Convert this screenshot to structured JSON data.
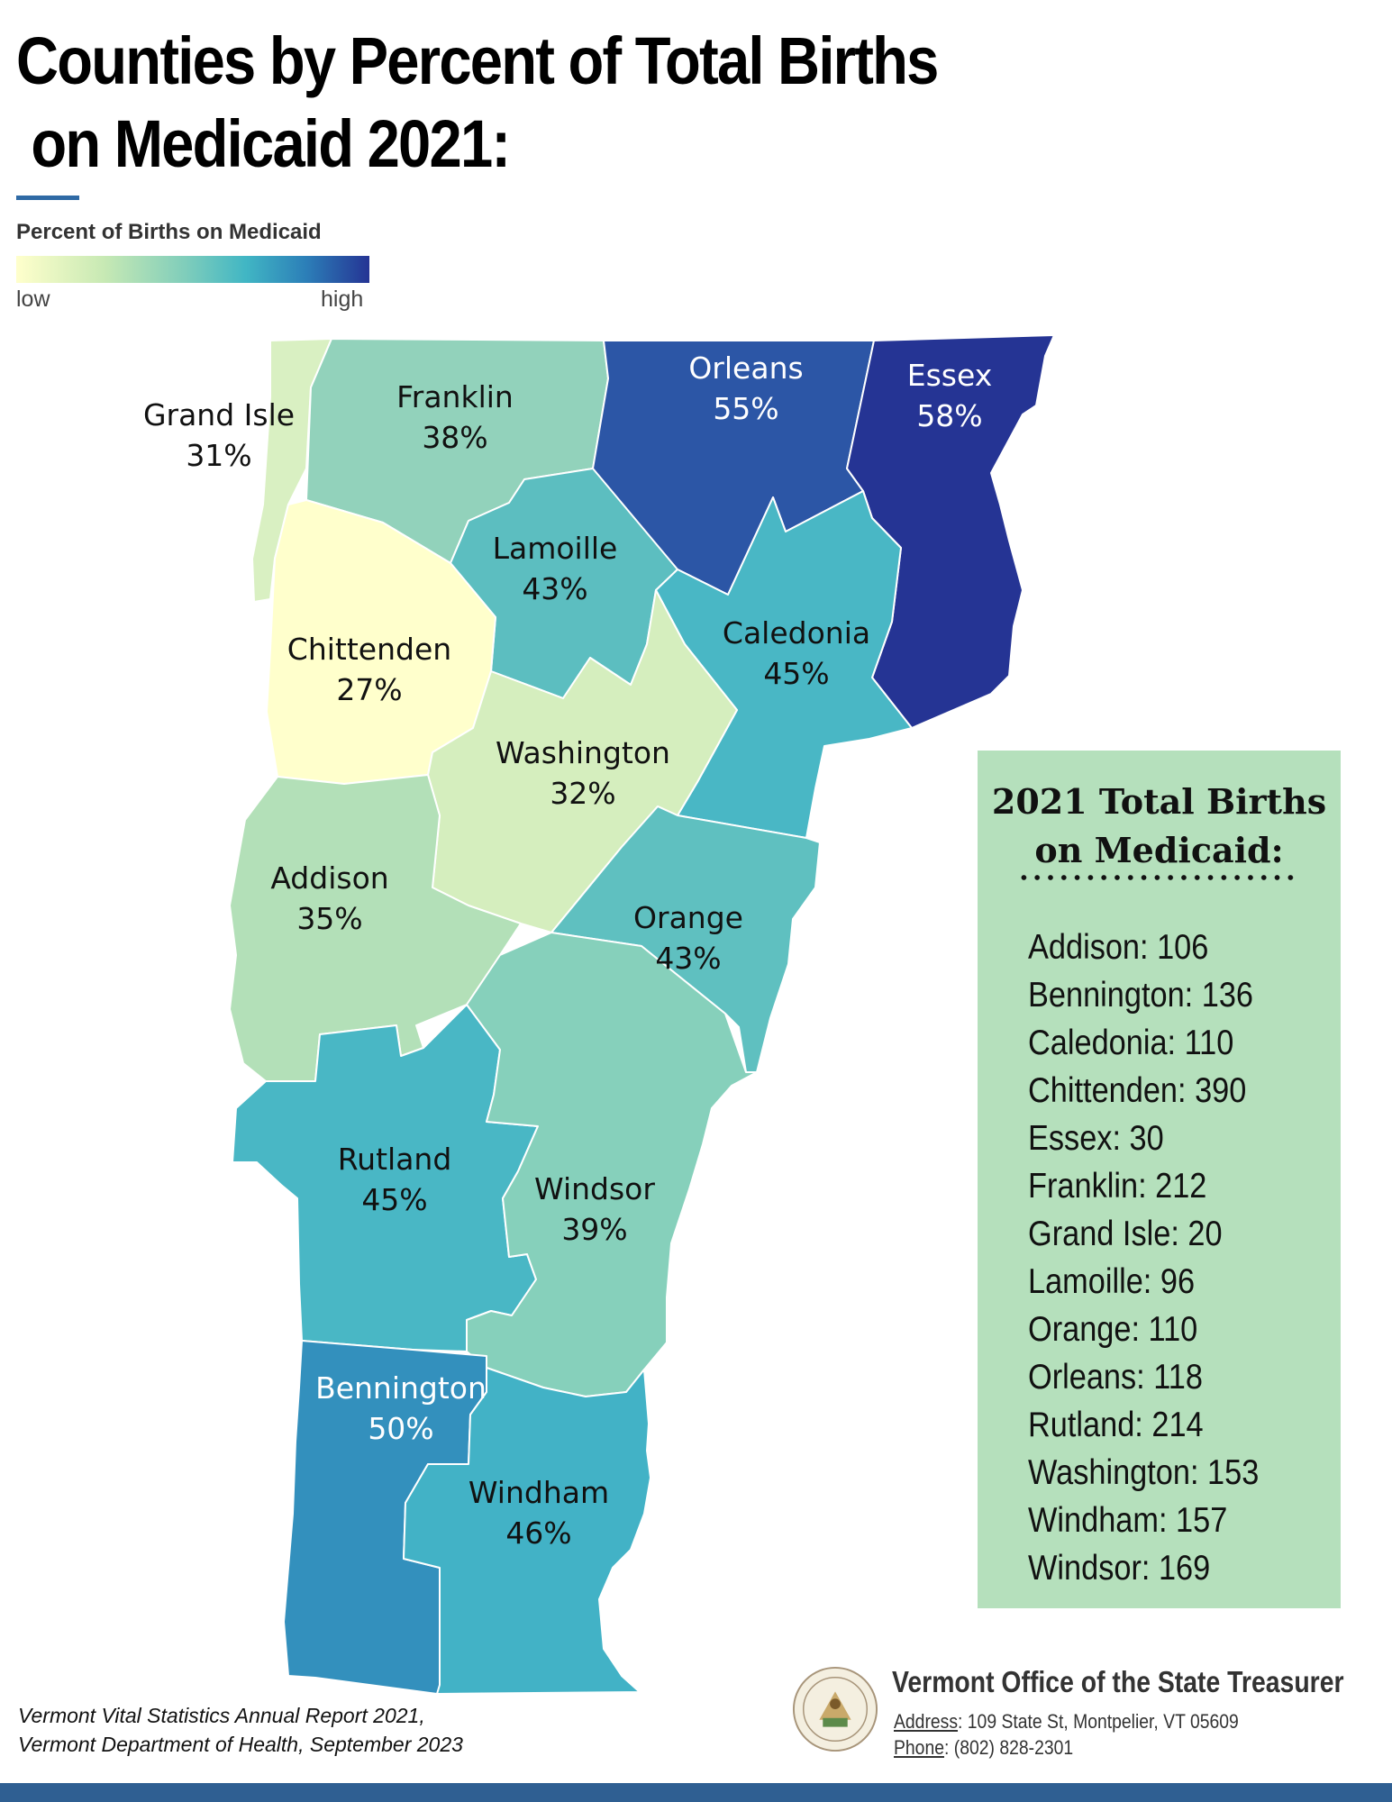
{
  "title": {
    "line1": "Counties by Percent of Total Births",
    "line2": " on Medicaid 2021:"
  },
  "legend": {
    "title": "Percent of Births on Medicaid",
    "low_label": "low",
    "high_label": "high",
    "colors": [
      "#ffffcc",
      "#c7e9b4",
      "#7fcdbb",
      "#41b6c4",
      "#2c7fb8",
      "#253494"
    ]
  },
  "map": {
    "counties": [
      {
        "name": "Grand Isle",
        "percent": "31%",
        "fill": "#d9f0c2",
        "label_color": "#111111"
      },
      {
        "name": "Franklin",
        "percent": "38%",
        "fill": "#92d2bb",
        "label_color": "#111111"
      },
      {
        "name": "Orleans",
        "percent": "55%",
        "fill": "#2c56a6",
        "label_color": "#ffffff"
      },
      {
        "name": "Essex",
        "percent": "58%",
        "fill": "#253494",
        "label_color": "#ffffff"
      },
      {
        "name": "Lamoille",
        "percent": "43%",
        "fill": "#5cbec0",
        "label_color": "#111111"
      },
      {
        "name": "Chittenden",
        "percent": "27%",
        "fill": "#ffffcc",
        "label_color": "#111111"
      },
      {
        "name": "Caledonia",
        "percent": "45%",
        "fill": "#49b7c5",
        "label_color": "#111111"
      },
      {
        "name": "Washington",
        "percent": "32%",
        "fill": "#d5eebe",
        "label_color": "#111111"
      },
      {
        "name": "Addison",
        "percent": "35%",
        "fill": "#b3e0b8",
        "label_color": "#111111"
      },
      {
        "name": "Orange",
        "percent": "43%",
        "fill": "#5fc0c0",
        "label_color": "#111111"
      },
      {
        "name": "Rutland",
        "percent": "45%",
        "fill": "#49b7c5",
        "label_color": "#111111"
      },
      {
        "name": "Windsor",
        "percent": "39%",
        "fill": "#86d0bb",
        "label_color": "#111111"
      },
      {
        "name": "Bennington",
        "percent": "50%",
        "fill": "#3390bd",
        "label_color": "#ffffff"
      },
      {
        "name": "Windham",
        "percent": "46%",
        "fill": "#42b2c6",
        "label_color": "#111111"
      }
    ]
  },
  "totals": {
    "title_line1": "2021 Total Births",
    "title_line2": "on Medicaid:",
    "items": [
      "Addison: 106",
      "Bennington: 136",
      "Caledonia: 110",
      "Chittenden: 390",
      "Essex: 30",
      "Franklin: 212",
      "Grand Isle: 20",
      "Lamoille: 96",
      "Orange: 110",
      "Orleans: 118",
      "Rutland: 214",
      "Washington: 153",
      "Windham: 157",
      "Windsor: 169"
    ]
  },
  "source": {
    "line1": "Vermont Vital Statistics Annual Report 2021,",
    "line2": "Vermont Department of Health, September 2023"
  },
  "org": {
    "name": "Vermont Office of the State Treasurer",
    "address_label": "Address",
    "address": ": 109 State St, Montpelier, VT 05609",
    "phone_label": "Phone",
    "phone": ": (802) 828-2301"
  }
}
